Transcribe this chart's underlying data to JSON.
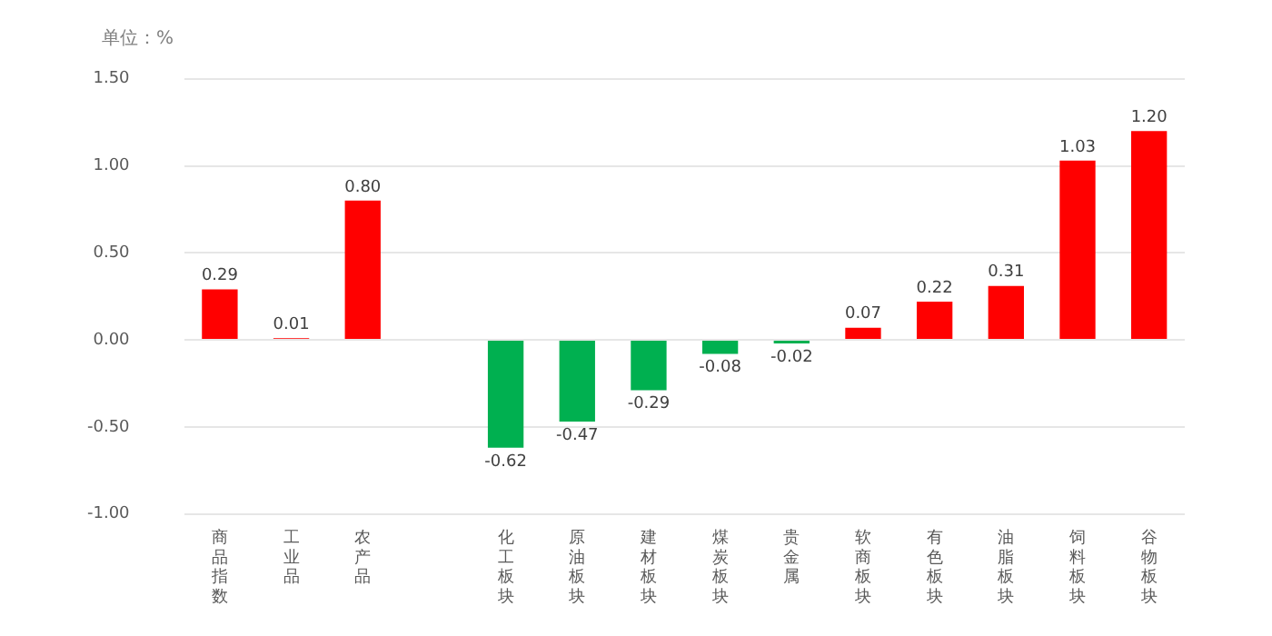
{
  "chart_data": {
    "type": "bar",
    "ylabel": "单位：%",
    "categories": [
      "商品指数",
      "工业品",
      "农产品",
      null,
      "化工板块",
      "原油板块",
      "建材板块",
      "煤炭板块",
      "贵金属",
      "软商板块",
      "有色板块",
      "油脂板块",
      "饲料板块",
      "谷物板块"
    ],
    "values": [
      0.29,
      0.01,
      0.8,
      null,
      -0.62,
      -0.47,
      -0.29,
      -0.08,
      -0.02,
      0.07,
      0.22,
      0.31,
      1.03,
      1.2
    ],
    "colors": [
      "#ff0000",
      "#ff0000",
      "#ff0000",
      null,
      "#00b050",
      "#00b050",
      "#00b050",
      "#00b050",
      "#00b050",
      "#ff0000",
      "#ff0000",
      "#ff0000",
      "#ff0000",
      "#ff0000"
    ],
    "value_labels": [
      "0.29",
      "0.01",
      "0.80",
      null,
      "-0.62",
      "-0.47",
      "-0.29",
      "-0.08",
      "-0.02",
      "0.07",
      "0.22",
      "0.31",
      "1.03",
      "1.20"
    ],
    "ylim": [
      -1.0,
      1.5
    ],
    "yticks": [
      {
        "value": -1,
        "label": "-1.00"
      },
      {
        "value": -0.5,
        "label": "-0.50"
      },
      {
        "value": 0,
        "label": "0.00"
      },
      {
        "value": 0.5,
        "label": "0.50"
      },
      {
        "value": 1,
        "label": "1.00"
      },
      {
        "value": 1.5,
        "label": "1.50"
      }
    ],
    "grid": "y",
    "legend": false
  }
}
